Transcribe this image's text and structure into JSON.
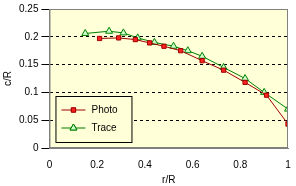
{
  "chart_data": {
    "type": "line",
    "x_label": "r/R",
    "y_label": "c/R",
    "series": [
      {
        "name": "Photo",
        "color": "#a00000",
        "marker": "square",
        "line_style": "solid",
        "x": [
          0.21,
          0.29,
          0.36,
          0.42,
          0.48,
          0.55,
          0.64,
          0.73,
          0.82,
          0.91,
          1.0
        ],
        "values": [
          0.197,
          0.198,
          0.195,
          0.189,
          0.183,
          0.175,
          0.157,
          0.14,
          0.118,
          0.095,
          0.043
        ]
      },
      {
        "name": "Trace",
        "color": "#008000",
        "marker": "triangle",
        "line_style": "solid",
        "x": [
          0.15,
          0.25,
          0.31,
          0.37,
          0.44,
          0.52,
          0.58,
          0.64,
          0.73,
          0.82,
          0.9,
          1.0
        ],
        "values": [
          0.206,
          0.21,
          0.207,
          0.198,
          0.19,
          0.183,
          0.175,
          0.165,
          0.145,
          0.125,
          0.1,
          0.07
        ]
      }
    ],
    "xlim": [
      0,
      1
    ],
    "xticks": [
      0,
      0.2,
      0.4,
      0.6,
      0.8,
      1
    ],
    "ylim": [
      0,
      0.25
    ],
    "yticks": [
      0,
      0.05,
      0.1,
      0.15,
      0.2,
      0.25
    ],
    "grid": true,
    "legend": "lower left"
  }
}
